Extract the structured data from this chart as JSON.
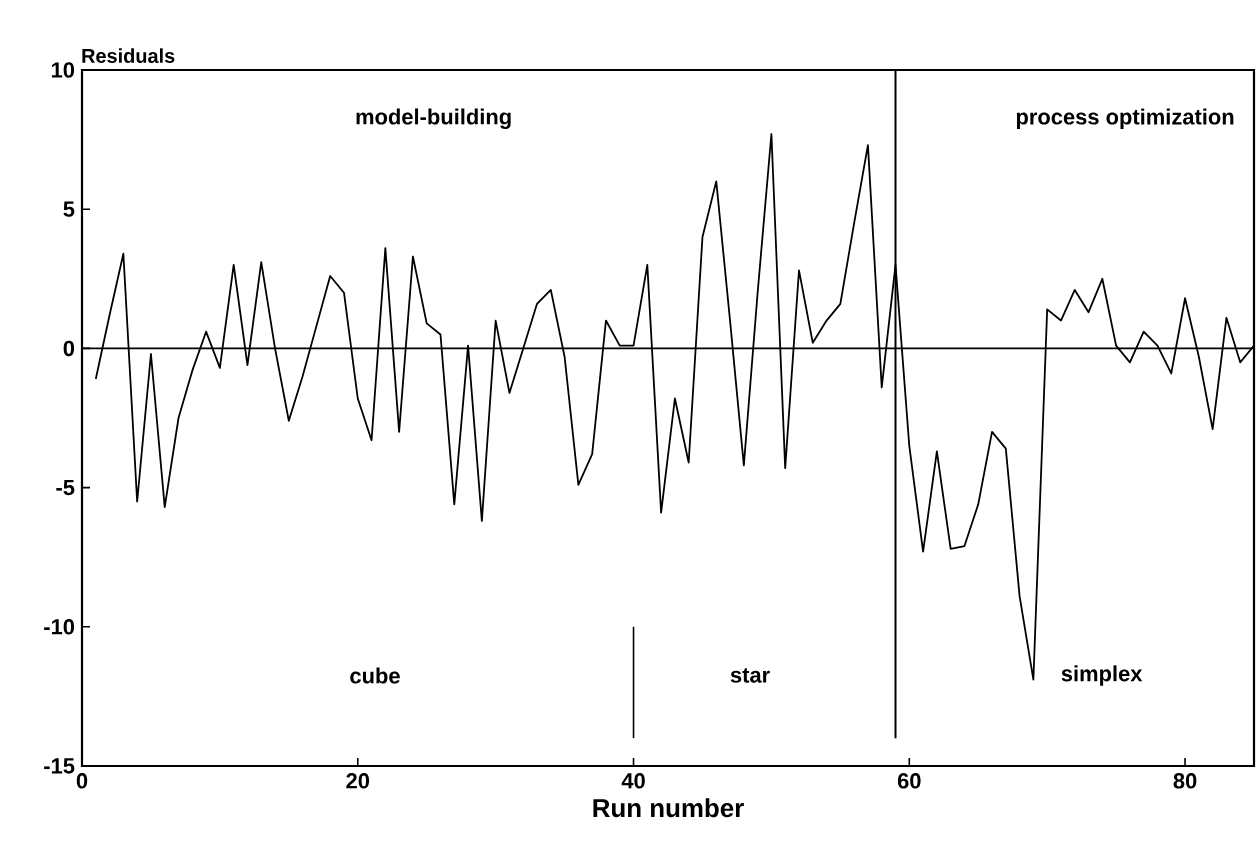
{
  "chart_data": {
    "type": "line",
    "ylabel": "Residuals",
    "xlabel": "Run number",
    "x": [
      1,
      2,
      3,
      4,
      5,
      6,
      7,
      8,
      9,
      10,
      11,
      12,
      13,
      14,
      15,
      16,
      17,
      18,
      19,
      20,
      21,
      22,
      23,
      24,
      25,
      26,
      27,
      28,
      29,
      30,
      31,
      32,
      33,
      34,
      35,
      36,
      37,
      38,
      39,
      40,
      41,
      42,
      43,
      44,
      45,
      46,
      47,
      48,
      49,
      50,
      51,
      52,
      53,
      54,
      55,
      56,
      57,
      58,
      59,
      60,
      61,
      62,
      63,
      64,
      65,
      66,
      67,
      68,
      69,
      70,
      71,
      72,
      73,
      74,
      75,
      76,
      77,
      78,
      79,
      80,
      81,
      82,
      83,
      84,
      85
    ],
    "series": [
      {
        "color": "#000000",
        "values": [
          -1.1,
          1.2,
          3.4,
          -5.5,
          -0.2,
          -5.7,
          -2.5,
          -0.8,
          0.6,
          -0.7,
          3.0,
          -0.6,
          3.1,
          0.0,
          -2.6,
          -1.0,
          0.8,
          2.6,
          2.0,
          -1.8,
          -3.3,
          3.6,
          -3.0,
          3.3,
          0.9,
          0.5,
          -5.6,
          0.1,
          -6.2,
          1.0,
          -1.6,
          0.0,
          1.6,
          2.1,
          -0.3,
          -4.9,
          -3.8,
          1.0,
          0.1,
          0.1,
          3.0,
          -5.9,
          -1.8,
          -4.1,
          4.0,
          6.0,
          1.0,
          -4.2,
          2.0,
          7.7,
          -4.3,
          2.8,
          0.2,
          1.0,
          1.6,
          4.5,
          7.3,
          -1.4,
          3.0,
          -3.5,
          -7.3,
          -3.7,
          -7.2,
          -7.1,
          -5.6,
          -3.0,
          -3.6,
          -8.9,
          -11.9,
          1.4,
          1.0,
          2.1,
          1.3,
          2.5,
          0.1,
          -0.5,
          0.6,
          0.1,
          -0.9,
          1.8,
          -0.3,
          -2.9,
          1.1,
          -0.5,
          0.1
        ]
      }
    ],
    "xlim": [
      0,
      85
    ],
    "ylim": [
      -15,
      10
    ],
    "xticks": [
      0,
      20,
      40,
      60,
      80
    ],
    "yticks": [
      -15,
      -10,
      -5,
      0,
      5,
      10
    ],
    "ref_lines": [
      {
        "axis": "y",
        "value": 0,
        "color": "#000000"
      },
      {
        "axis": "x",
        "value": 59,
        "color": "#000000"
      },
      {
        "axis": "x",
        "value": 40,
        "color": "#000000"
      }
    ],
    "annotations": [
      "model-building",
      "process optimization",
      "cube",
      "star",
      "simplex"
    ],
    "grid": false,
    "marker": "none",
    "line_style": "solid"
  }
}
